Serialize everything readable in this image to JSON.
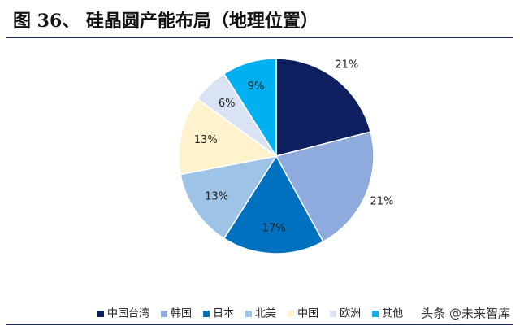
{
  "chart_data": {
    "type": "pie",
    "title": "图 36、 硅晶圆产能布局（地理位置）",
    "categories": [
      "中国台湾",
      "韩国",
      "日本",
      "北美",
      "中国",
      "欧洲",
      "其他"
    ],
    "values": [
      21,
      21,
      17,
      13,
      13,
      6,
      9
    ],
    "value_labels": [
      "21%",
      "21%",
      "17%",
      "13%",
      "13%",
      "6%",
      "9%"
    ],
    "colors": [
      "#0d1f5e",
      "#8faadc",
      "#0070c0",
      "#9dc3e6",
      "#fff2cc",
      "#dae3f3",
      "#00b0f0"
    ],
    "legend": "bottom"
  },
  "watermark": "头条 @未来智库"
}
